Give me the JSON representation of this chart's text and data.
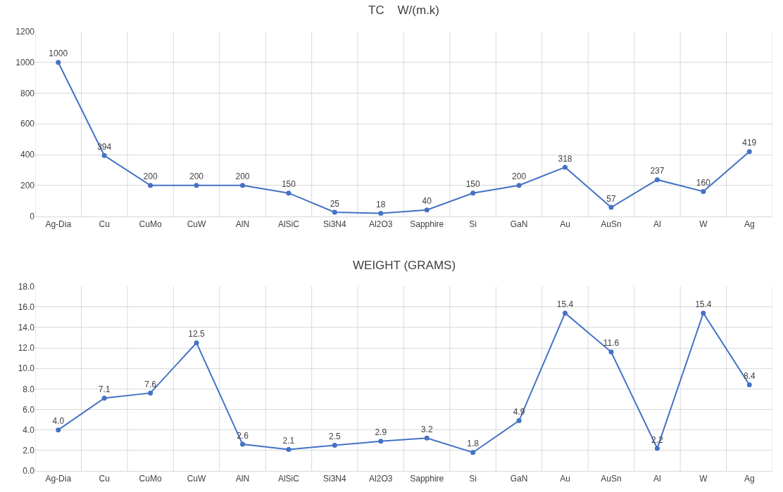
{
  "chart_data": [
    {
      "type": "line",
      "title": "TC    W/(m.k)",
      "categories": [
        "Ag-Dia",
        "Cu",
        "CuMo",
        "CuW",
        "AlN",
        "AlSiC",
        "Si3N4",
        "Al2O3",
        "Sapphire",
        "Si",
        "GaN",
        "Au",
        "AuSn",
        "Al",
        "W",
        "Ag"
      ],
      "series": [
        {
          "color": "#4472c4",
          "values": [
            1000,
            394,
            200,
            200,
            200,
            150,
            25,
            18,
            40,
            150,
            200,
            318,
            57,
            237,
            160,
            419
          ]
        }
      ],
      "ylim": [
        0,
        1200
      ],
      "yticks": [
        0,
        200,
        400,
        600,
        800,
        1000,
        1200
      ],
      "grid": true,
      "marker": "circle",
      "line_style": "solid",
      "data_labels": true
    },
    {
      "type": "line",
      "title": "WEIGHT (GRAMS)",
      "categories": [
        "Ag-Dia",
        "Cu",
        "CuMo",
        "CuW",
        "AlN",
        "AlSiC",
        "Si3N4",
        "Al2O3",
        "Sapphire",
        "Si",
        "GaN",
        "Au",
        "AuSn",
        "Al",
        "W",
        "Ag"
      ],
      "series": [
        {
          "color": "#4472c4",
          "values": [
            4.0,
            7.1,
            7.6,
            12.5,
            2.6,
            2.1,
            2.5,
            2.9,
            3.2,
            1.8,
            4.9,
            15.4,
            11.6,
            2.2,
            15.4,
            8.4
          ],
          "value_labels": [
            "4.0",
            "7.1",
            "7.6",
            "12.5",
            "2.6",
            "2.1",
            "2.5",
            "2.9",
            "3.2",
            "1.8",
            "4.9",
            "15.4",
            "11.6",
            "2.2",
            "15.4",
            "8.4"
          ]
        }
      ],
      "ylim": [
        0,
        18
      ],
      "yticks": [
        {
          "value": 0,
          "label": "0.0"
        },
        {
          "value": 2,
          "label": "2.0"
        },
        {
          "value": 4,
          "label": "4.0"
        },
        {
          "value": 6,
          "label": "6.0"
        },
        {
          "value": 8,
          "label": "8.0"
        },
        {
          "value": 10,
          "label": "10.0"
        },
        {
          "value": 12,
          "label": "12.0"
        },
        {
          "value": 14,
          "label": "14.0"
        },
        {
          "value": 16,
          "label": "16.0"
        },
        {
          "value": 18,
          "label": "18.0"
        }
      ],
      "grid": true,
      "marker": "circle",
      "line_style": "solid"
    }
  ]
}
